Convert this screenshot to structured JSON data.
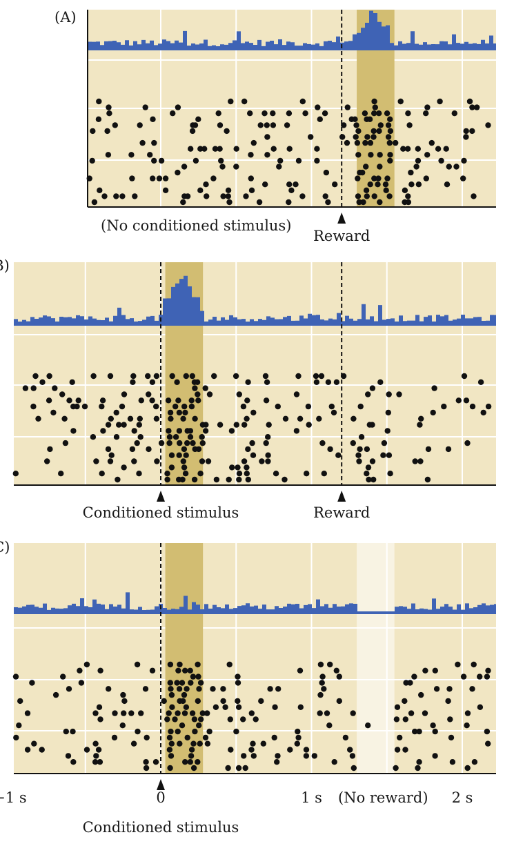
{
  "colors": {
    "background": "#f1e6c3",
    "grid": "#ffffff",
    "highlight": "#d2bd72",
    "no_reward_band": "#f8f3e3",
    "histogram": "#3f63b5",
    "dots": "#111111",
    "axis": "#111111"
  },
  "chart_data": [
    {
      "type": "raster+histogram",
      "panel_label": "(A)",
      "highlight_window_s": [
        1.3,
        1.55
      ],
      "markers": [
        {
          "t": 1.2,
          "label": "Reward",
          "dashed": true
        }
      ],
      "annotation": "(No conditioned stimulus)",
      "histogram_peak": {
        "t": 1.4,
        "height": "high"
      }
    },
    {
      "type": "raster+histogram",
      "panel_label": "(B)",
      "highlight_window_s": [
        0.03,
        0.28
      ],
      "markers": [
        {
          "t": 0.0,
          "label": "Conditioned stimulus",
          "dashed": true
        },
        {
          "t": 1.2,
          "label": "Reward",
          "dashed": true
        }
      ],
      "histogram_peak": {
        "t": 0.15,
        "height": "very high"
      }
    },
    {
      "type": "raster+histogram",
      "panel_label": "(C)",
      "highlight_window_s": [
        0.03,
        0.28
      ],
      "no_reward_window_s": [
        1.3,
        1.55
      ],
      "markers": [
        {
          "t": 0.0,
          "label": "Conditioned stimulus",
          "dashed": true
        }
      ],
      "x_axis": {
        "range": [
          -1.0,
          2.2
        ],
        "ticks": [
          {
            "t": -1.0,
            "label": "−1 s"
          },
          {
            "t": 0.0,
            "label": "0"
          },
          {
            "t": 1.0,
            "label": "1 s"
          },
          {
            "t": 2.0,
            "label": "2 s"
          }
        ]
      },
      "annotation": "(No reward)",
      "histogram_dip": {
        "t": [
          1.3,
          1.55
        ]
      }
    }
  ]
}
